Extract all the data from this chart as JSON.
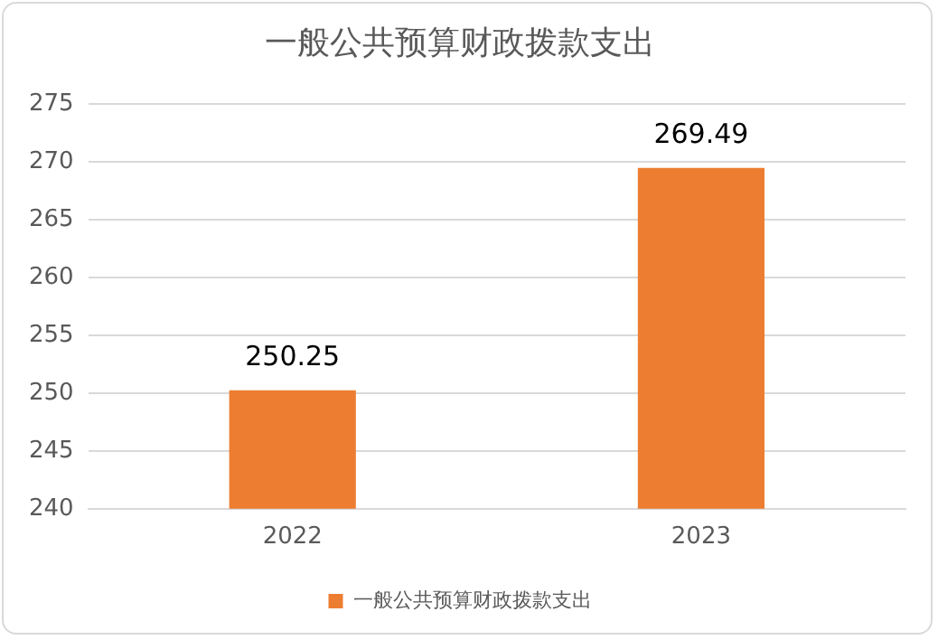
{
  "chart_data": {
    "type": "bar",
    "title": "一般公共预算财政拨款支出",
    "categories": [
      "2022",
      "2023"
    ],
    "series": [
      {
        "name": "一般公共预算财政拨款支出",
        "color": "#ed7d31",
        "values": [
          250.25,
          269.49
        ]
      }
    ],
    "ylim": [
      240,
      275
    ],
    "yticks": [
      240,
      245,
      250,
      255,
      260,
      265,
      270,
      275
    ],
    "grid": "y",
    "legend": "bottom",
    "data_labels": true
  }
}
